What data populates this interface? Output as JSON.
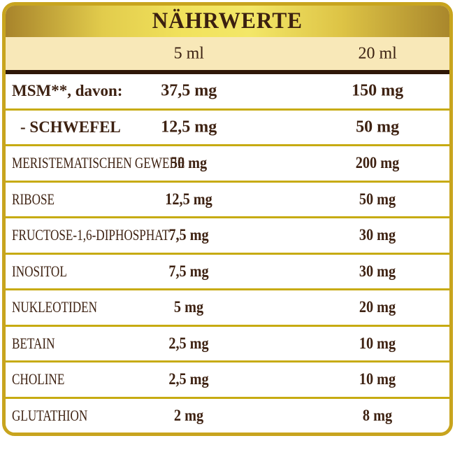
{
  "title": "NÄHRWERTE",
  "columns": {
    "c5": "5 ml",
    "c20": "20 ml"
  },
  "colors": {
    "border_gold": "#C8A41E",
    "band_gradient_left": "#A8842B",
    "band_gradient_mid": "#F3E768",
    "band_gradient_right": "#A9872C",
    "cream_header_bg": "#F8E8B8",
    "dark_divider": "#2F1808",
    "gold_divider": "#C7AB12",
    "row_bg": "#FFFFFF",
    "text_brown": "#3E2212"
  },
  "table": {
    "rows": [
      {
        "label": "MSM**, davon:",
        "v5": "37,5 mg",
        "v20": "150 mg"
      },
      {
        "label": "- SCHWEFEL",
        "v5": "12,5 mg",
        "v20": "50 mg"
      },
      {
        "label": "MERISTEMATISCHEN GEWEBE",
        "v5": "50 mg",
        "v20": "200 mg"
      },
      {
        "label": "RIBOSE",
        "v5": "12,5 mg",
        "v20": "50 mg"
      },
      {
        "label": "FRUCTOSE-1,6-DIPHOSPHAT",
        "v5": "7,5 mg",
        "v20": "30 mg"
      },
      {
        "label": "INOSITOL",
        "v5": "7,5 mg",
        "v20": "30 mg"
      },
      {
        "label": "NUKLEOTIDEN",
        "v5": "5 mg",
        "v20": "20 mg"
      },
      {
        "label": "BETAIN",
        "v5": "2,5 mg",
        "v20": "10 mg"
      },
      {
        "label": "CHOLINE",
        "v5": "2,5 mg",
        "v20": "10 mg"
      },
      {
        "label": "GLUTATHION",
        "v5": "2 mg",
        "v20": "8 mg"
      }
    ]
  }
}
